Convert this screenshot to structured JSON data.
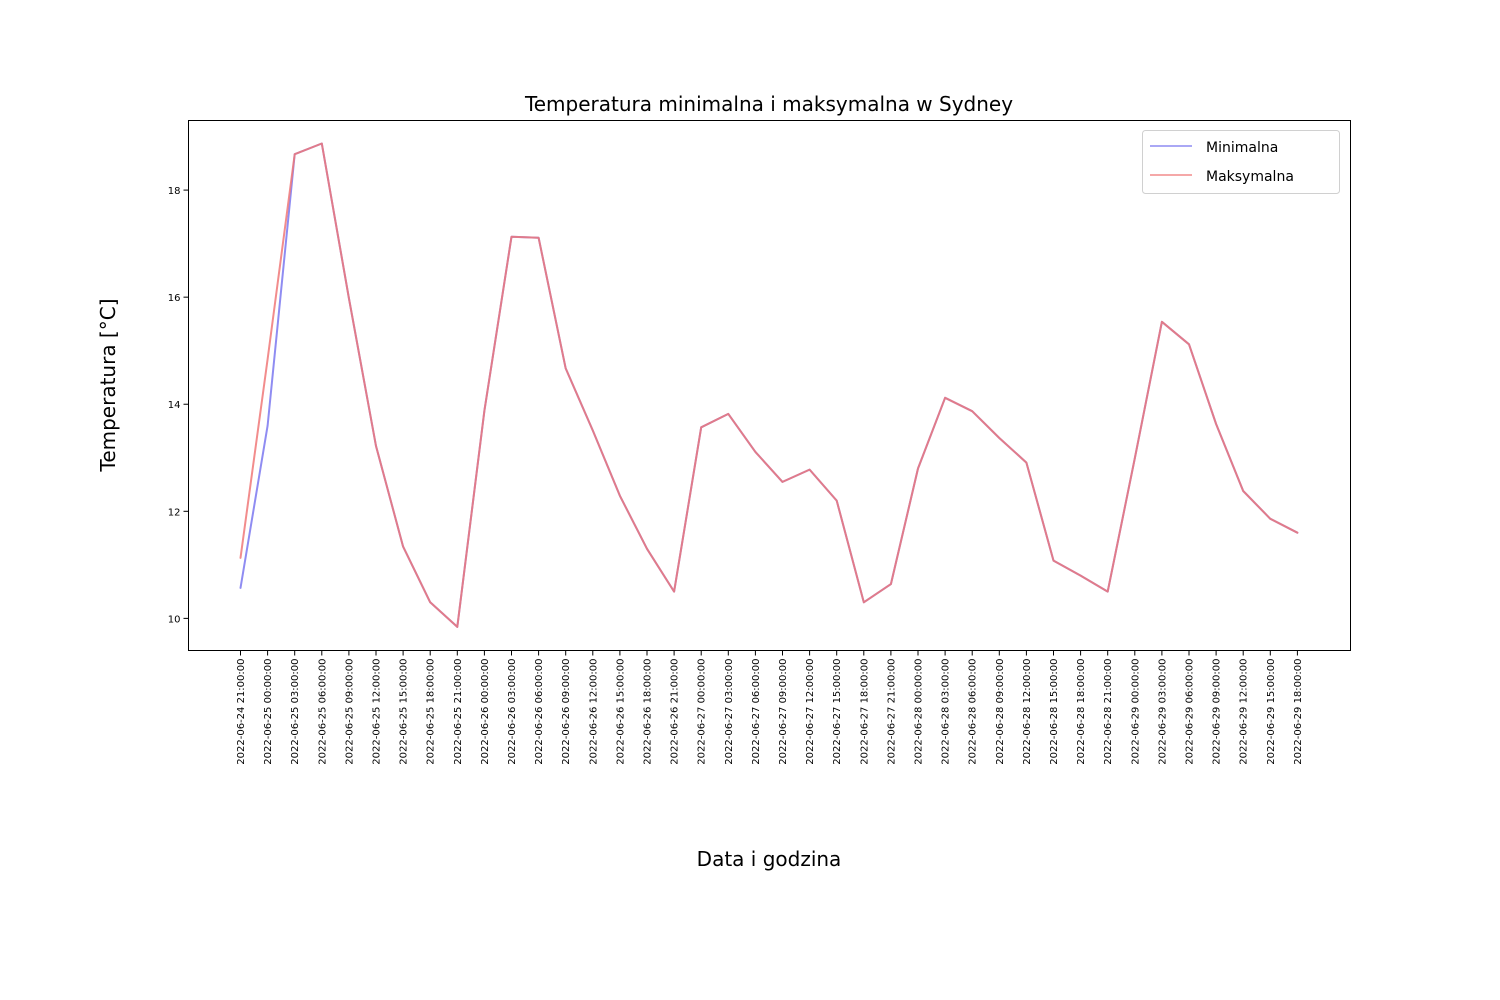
{
  "chart_data": {
    "type": "line",
    "title": "Temperatura minimalna i maksymalna w Sydney",
    "xlabel": "Data i godzina",
    "ylabel": "Temperatura [°C]",
    "ylim": [
      9.4,
      19.3
    ],
    "yticks": [
      10,
      12,
      14,
      16,
      18
    ],
    "grid": false,
    "legend_position": "top-right",
    "x": [
      "2022-06-24 21:00:00",
      "2022-06-25 00:00:00",
      "2022-06-25 03:00:00",
      "2022-06-25 06:00:00",
      "2022-06-25 09:00:00",
      "2022-06-25 12:00:00",
      "2022-06-25 15:00:00",
      "2022-06-25 18:00:00",
      "2022-06-25 21:00:00",
      "2022-06-26 00:00:00",
      "2022-06-26 03:00:00",
      "2022-06-26 06:00:00",
      "2022-06-26 09:00:00",
      "2022-06-26 12:00:00",
      "2022-06-26 15:00:00",
      "2022-06-26 18:00:00",
      "2022-06-26 21:00:00",
      "2022-06-27 00:00:00",
      "2022-06-27 03:00:00",
      "2022-06-27 06:00:00",
      "2022-06-27 09:00:00",
      "2022-06-27 12:00:00",
      "2022-06-27 15:00:00",
      "2022-06-27 18:00:00",
      "2022-06-27 21:00:00",
      "2022-06-28 00:00:00",
      "2022-06-28 03:00:00",
      "2022-06-28 06:00:00",
      "2022-06-28 09:00:00",
      "2022-06-28 12:00:00",
      "2022-06-28 15:00:00",
      "2022-06-28 18:00:00",
      "2022-06-28 21:00:00",
      "2022-06-29 00:00:00",
      "2022-06-29 03:00:00",
      "2022-06-29 06:00:00",
      "2022-06-29 09:00:00",
      "2022-06-29 12:00:00",
      "2022-06-29 15:00:00",
      "2022-06-29 18:00:00"
    ],
    "series": [
      {
        "name": "Minimalna",
        "color": "#7b78f0",
        "values": [
          10.57,
          13.6,
          18.67,
          18.87,
          15.98,
          13.22,
          11.34,
          10.3,
          9.84,
          13.88,
          17.13,
          17.11,
          14.67,
          13.51,
          12.29,
          11.3,
          10.5,
          13.57,
          13.82,
          13.11,
          12.55,
          12.78,
          12.2,
          10.3,
          10.64,
          12.8,
          14.12,
          13.87,
          13.37,
          12.91,
          11.08,
          10.8,
          10.5,
          12.99,
          15.54,
          15.12,
          13.63,
          12.38,
          11.86,
          11.6
        ]
      },
      {
        "name": "Maksymalna",
        "color": "#f07878",
        "values": [
          11.13,
          14.84,
          18.67,
          18.87,
          15.98,
          13.22,
          11.34,
          10.3,
          9.84,
          13.88,
          17.13,
          17.11,
          14.67,
          13.51,
          12.29,
          11.3,
          10.5,
          13.57,
          13.82,
          13.11,
          12.55,
          12.78,
          12.2,
          10.3,
          10.64,
          12.8,
          14.12,
          13.87,
          13.37,
          12.91,
          11.08,
          10.8,
          10.5,
          12.99,
          15.54,
          15.12,
          13.63,
          12.38,
          11.86,
          11.6
        ]
      }
    ]
  }
}
